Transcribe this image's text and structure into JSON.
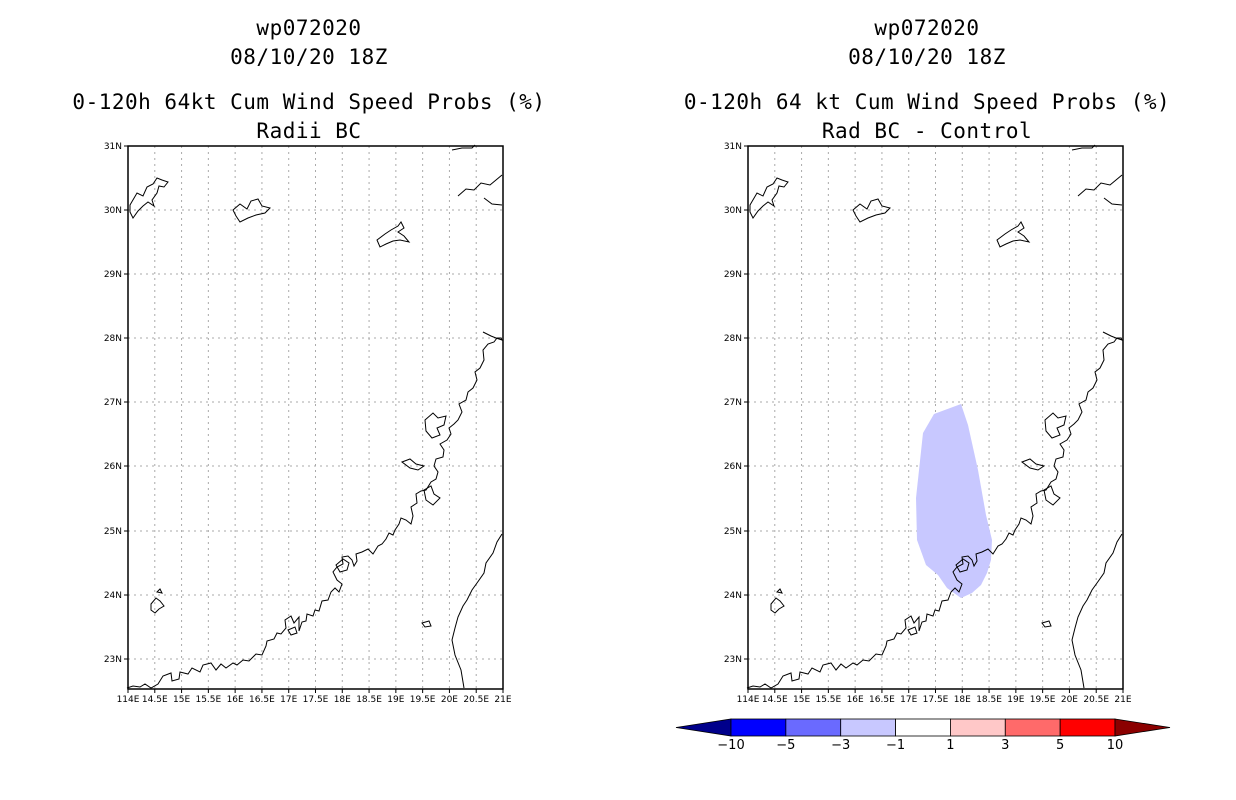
{
  "left_panel": {
    "title_line1": "wp072020",
    "title_line2": "08/10/20 18Z",
    "subtitle_line1": "0-120h 64kt Cum Wind Speed Probs (%)",
    "subtitle_line2": "Radii BC",
    "lat_labels": [
      "31N",
      "30N",
      "29N",
      "28N",
      "27N",
      "26N",
      "25N",
      "24N",
      "23N"
    ],
    "lon_labels": [
      "114E",
      "14.5E",
      "15E",
      "15.5E",
      "16E",
      "16.5E",
      "17E",
      "17.5E",
      "18E",
      "18.5E",
      "19E",
      "19.5E",
      "20E",
      "20.5E",
      "21E"
    ]
  },
  "right_panel": {
    "title_line1": "wp072020",
    "title_line2": "08/10/20 18Z",
    "subtitle_line1": "0-120h 64 kt Cum Wind Speed Probs (%)",
    "subtitle_line2": "Rad BC - Control",
    "lat_labels": [
      "31N",
      "30N",
      "29N",
      "28N",
      "27N",
      "26N",
      "25N",
      "24N",
      "23N"
    ],
    "lon_labels": [
      "114E",
      "14.5E",
      "15E",
      "15.5E",
      "16E",
      "16.5E",
      "17E",
      "17.5E",
      "18E",
      "18.5E",
      "19E",
      "19.5E",
      "20E",
      "20.5E",
      "21E"
    ],
    "shaded_region_range": "-3 to -1"
  },
  "colorbar": {
    "labels": [
      "-10",
      "-5",
      "-3",
      "-1",
      "1",
      "3",
      "5",
      "10"
    ],
    "colors": [
      "#00008b",
      "#0000ff",
      "#6a6aff",
      "#c8c8ff",
      "#ffffff",
      "#ffc8c8",
      "#ff6a6a",
      "#ff0000",
      "#8b0000"
    ]
  },
  "colors": {
    "coastline": "#000000",
    "grid": "#aaaaaa",
    "shading": "#c8c8ff"
  }
}
